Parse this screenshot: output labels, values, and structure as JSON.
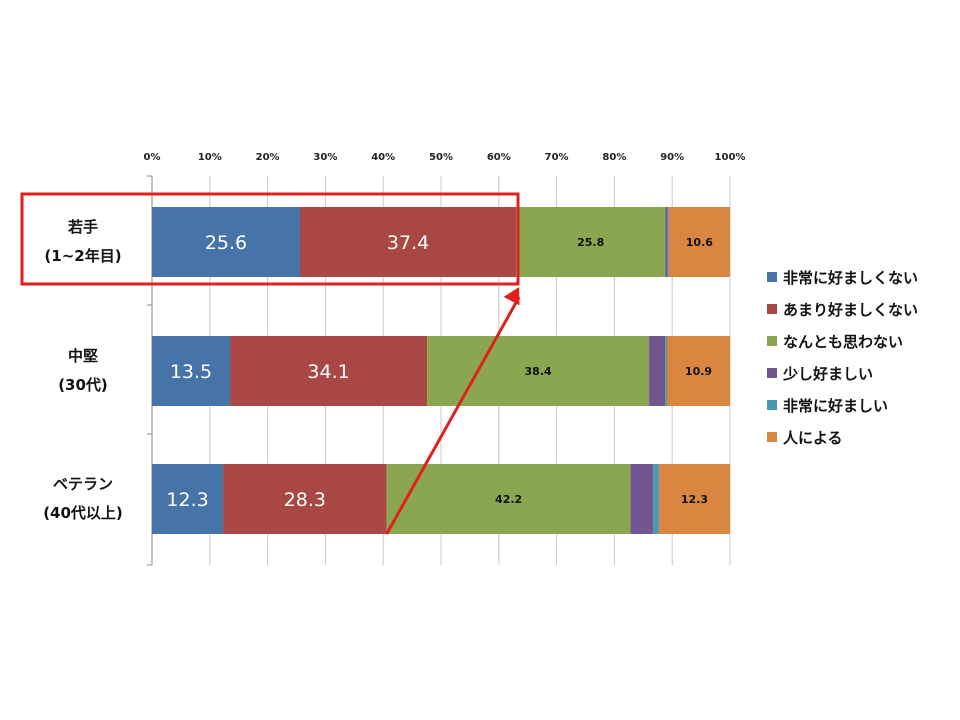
{
  "chart_data": {
    "type": "bar",
    "orientation": "horizontal",
    "stacked": "percent",
    "categories": [
      [
        "若手",
        "(1~2年目)"
      ],
      [
        "中堅",
        "(30代)"
      ],
      [
        "ベテラン",
        "(40代以上)"
      ]
    ],
    "series": [
      {
        "name": "非常に好ましくない",
        "color": "#4673a8",
        "values": [
          25.6,
          13.5,
          12.3
        ],
        "labels": [
          "25.6",
          "13.5",
          "12.3"
        ],
        "label_style": "big"
      },
      {
        "name": "あまり好ましくない",
        "color": "#a84744",
        "values": [
          37.4,
          34.1,
          28.3
        ],
        "labels": [
          "37.4",
          "34.1",
          "28.3"
        ],
        "label_style": "big"
      },
      {
        "name": "なんとも思わない",
        "color": "#8aa650",
        "values": [
          25.8,
          38.4,
          42.2
        ],
        "labels": [
          "25.8",
          "38.4",
          "42.2"
        ],
        "label_style": "small"
      },
      {
        "name": "少し好ましい",
        "color": "#70558f",
        "values": [
          0.4,
          2.8,
          3.9
        ],
        "labels": [
          "",
          "",
          ""
        ],
        "label_style": "small"
      },
      {
        "name": "非常に好ましい",
        "color": "#4699b2",
        "values": [
          0.2,
          0.3,
          1.0
        ],
        "labels": [
          "",
          "",
          ""
        ],
        "label_style": "small"
      },
      {
        "name": "人による",
        "color": "#db8640",
        "values": [
          10.6,
          10.9,
          12.3
        ],
        "labels": [
          "10.6",
          "10.9",
          "12.3"
        ],
        "label_style": "small"
      }
    ],
    "xlim": [
      0,
      100
    ],
    "ticks": [
      "0%",
      "10%",
      "20%",
      "30%",
      "40%",
      "50%",
      "60%",
      "70%",
      "80%",
      "90%",
      "100%"
    ],
    "grid": true,
    "legend_position": "right",
    "annotations": [
      {
        "kind": "highlight-box",
        "category": "若手",
        "color": "#e02020"
      },
      {
        "kind": "arrow",
        "from": "ベテラン cumulative 40.6%",
        "to": "若手 cumulative 63.0%",
        "color": "#e02020"
      }
    ]
  }
}
